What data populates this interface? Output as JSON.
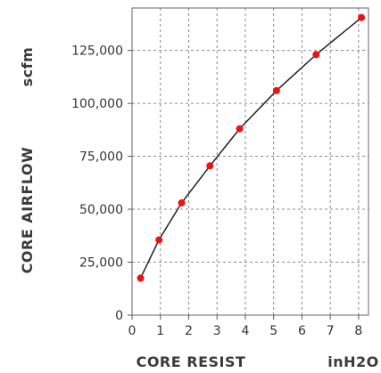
{
  "chart_data": {
    "type": "line",
    "x": [
      0.3,
      0.95,
      1.75,
      2.75,
      3.8,
      5.1,
      6.5,
      8.1
    ],
    "y": [
      17500,
      35500,
      53000,
      70500,
      88000,
      106000,
      123000,
      140500
    ],
    "xlabel": "CORE RESIST",
    "xunit": "inH2O",
    "ylabel": "CORE AIRFLOW",
    "yunit": "scfm",
    "xlim": [
      0,
      8.35
    ],
    "ylim": [
      0,
      145000
    ],
    "xticks": [
      0,
      1,
      2,
      3,
      4,
      5,
      6,
      7,
      8
    ],
    "yticks": [
      0,
      25000,
      50000,
      75000,
      100000,
      125000
    ],
    "xtick_labels": [
      "0",
      "1",
      "2",
      "3",
      "4",
      "5",
      "6",
      "7",
      "8"
    ],
    "ytick_labels": [
      "0",
      "25,000",
      "50,000",
      "75,000",
      "100,000",
      "125,000"
    ],
    "grid": true,
    "line_color": "#222222",
    "marker_color": "#ee1111"
  }
}
